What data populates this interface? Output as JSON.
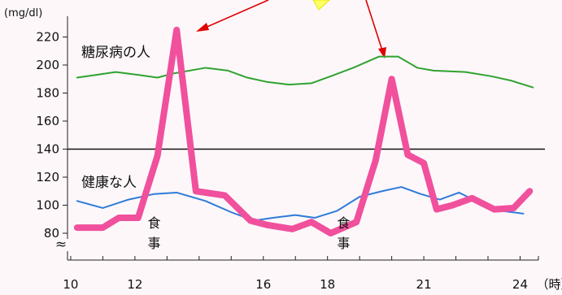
{
  "chart_data": {
    "type": "line",
    "ylabel": "(mg/dl)",
    "xunit": "（時）",
    "x_ticks": [
      10,
      12,
      16,
      18,
      21,
      24
    ],
    "y_ticks": [
      80,
      100,
      120,
      140,
      160,
      180,
      200,
      220
    ],
    "xlim": [
      9.9,
      24.9
    ],
    "ylim": [
      80,
      230
    ],
    "axis_break": "≈",
    "reference_line": 140,
    "series": [
      {
        "name": "糖尿病の人",
        "color": "#2fa32f",
        "x": [
          10.2,
          10.8,
          11.4,
          12.1,
          12.7,
          13.2,
          14.2,
          14.9,
          15.5,
          16.1,
          16.8,
          17.5,
          18.1,
          18.8,
          19.6,
          20.2,
          20.8,
          21.3,
          22.3,
          23.1,
          23.7,
          24.4
        ],
        "y": [
          191,
          193,
          195,
          193,
          191,
          194,
          198,
          196,
          191,
          188,
          186,
          187,
          192,
          198,
          206,
          206,
          198,
          196,
          195,
          192,
          189,
          184
        ]
      },
      {
        "name": "健康な人",
        "color": "#2f7bd8",
        "x": [
          10.2,
          11.0,
          11.8,
          12.6,
          13.3,
          14.2,
          15.0,
          15.7,
          16.3,
          17.0,
          17.6,
          18.3,
          19.0,
          19.7,
          20.3,
          20.9,
          21.5,
          22.1,
          22.8,
          23.4,
          24.1
        ],
        "y": [
          103,
          98,
          104,
          108,
          109,
          103,
          95,
          89,
          91,
          93,
          91,
          96,
          106,
          110,
          113,
          108,
          104,
          109,
          101,
          96,
          94
        ]
      },
      {
        "name": "",
        "color": "#f0509c",
        "x": [
          10.2,
          11.0,
          11.5,
          12.1,
          12.7,
          13.3,
          13.9,
          14.8,
          15.6,
          16.1,
          16.9,
          17.5,
          18.1,
          18.5,
          18.9,
          19.5,
          20.0,
          20.5,
          21.0,
          21.4,
          21.9,
          22.5,
          23.2,
          23.8,
          24.3
        ],
        "y": [
          84,
          84,
          91,
          91,
          135,
          225,
          110,
          107,
          89,
          86,
          83,
          88,
          80,
          84,
          88,
          132,
          190,
          136,
          130,
          97,
          100,
          105,
          97,
          98,
          110
        ]
      }
    ],
    "annotations": [
      {
        "text": "食事",
        "x": 12.7
      },
      {
        "text": "食事",
        "x": 18.6
      }
    ]
  }
}
